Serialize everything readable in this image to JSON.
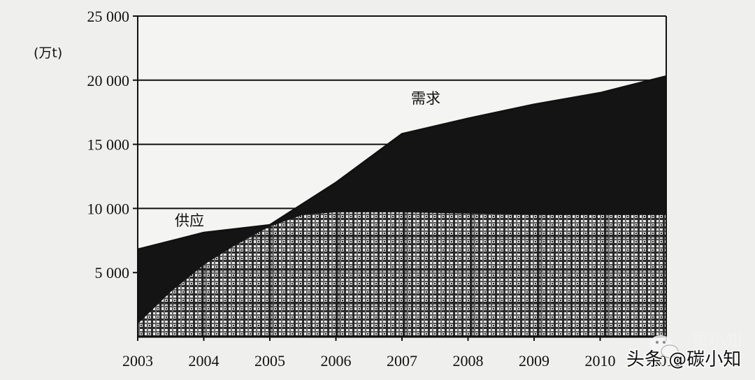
{
  "chart_data": {
    "type": "area",
    "title": "",
    "xlabel": "",
    "ylabel": "(万t)",
    "xlim": [
      2003,
      2011
    ],
    "ylim": [
      0,
      25000
    ],
    "grid": "horizontal",
    "x_ticks": [
      "2003",
      "2004",
      "2005",
      "2006",
      "2007",
      "2008",
      "2009",
      "2010",
      "2011"
    ],
    "y_ticks": [
      "5 000",
      "10 000",
      "15 000",
      "20 000",
      "25 000"
    ],
    "y_tick_values": [
      5000,
      10000,
      15000,
      20000,
      25000
    ],
    "series": [
      {
        "name": "供应",
        "fill": "crosshatch",
        "x": [
          2003,
          2003.5,
          2004,
          2004.5,
          2005,
          2005.5,
          2006,
          2007,
          2008,
          2009,
          2010,
          2011
        ],
        "values": [
          1000,
          3500,
          5600,
          7200,
          8600,
          9500,
          9700,
          9700,
          9600,
          9500,
          9500,
          9500
        ]
      },
      {
        "name": "需求",
        "fill": "solid",
        "x": [
          2003,
          2004,
          2005,
          2006,
          2007,
          2008,
          2009,
          2010,
          2011
        ],
        "values": [
          6800,
          8100,
          8700,
          12000,
          15800,
          17000,
          18100,
          19000,
          20300
        ]
      }
    ],
    "colors": {
      "demand": "#141414",
      "supply_dark": "#3a3a3a",
      "supply_light": "#e8e8e8",
      "background": "#efefed"
    }
  },
  "watermark": {
    "text": "头条 @碳小知",
    "icon": "wechat-bubble-icon",
    "ghost_text": "碳小知"
  }
}
